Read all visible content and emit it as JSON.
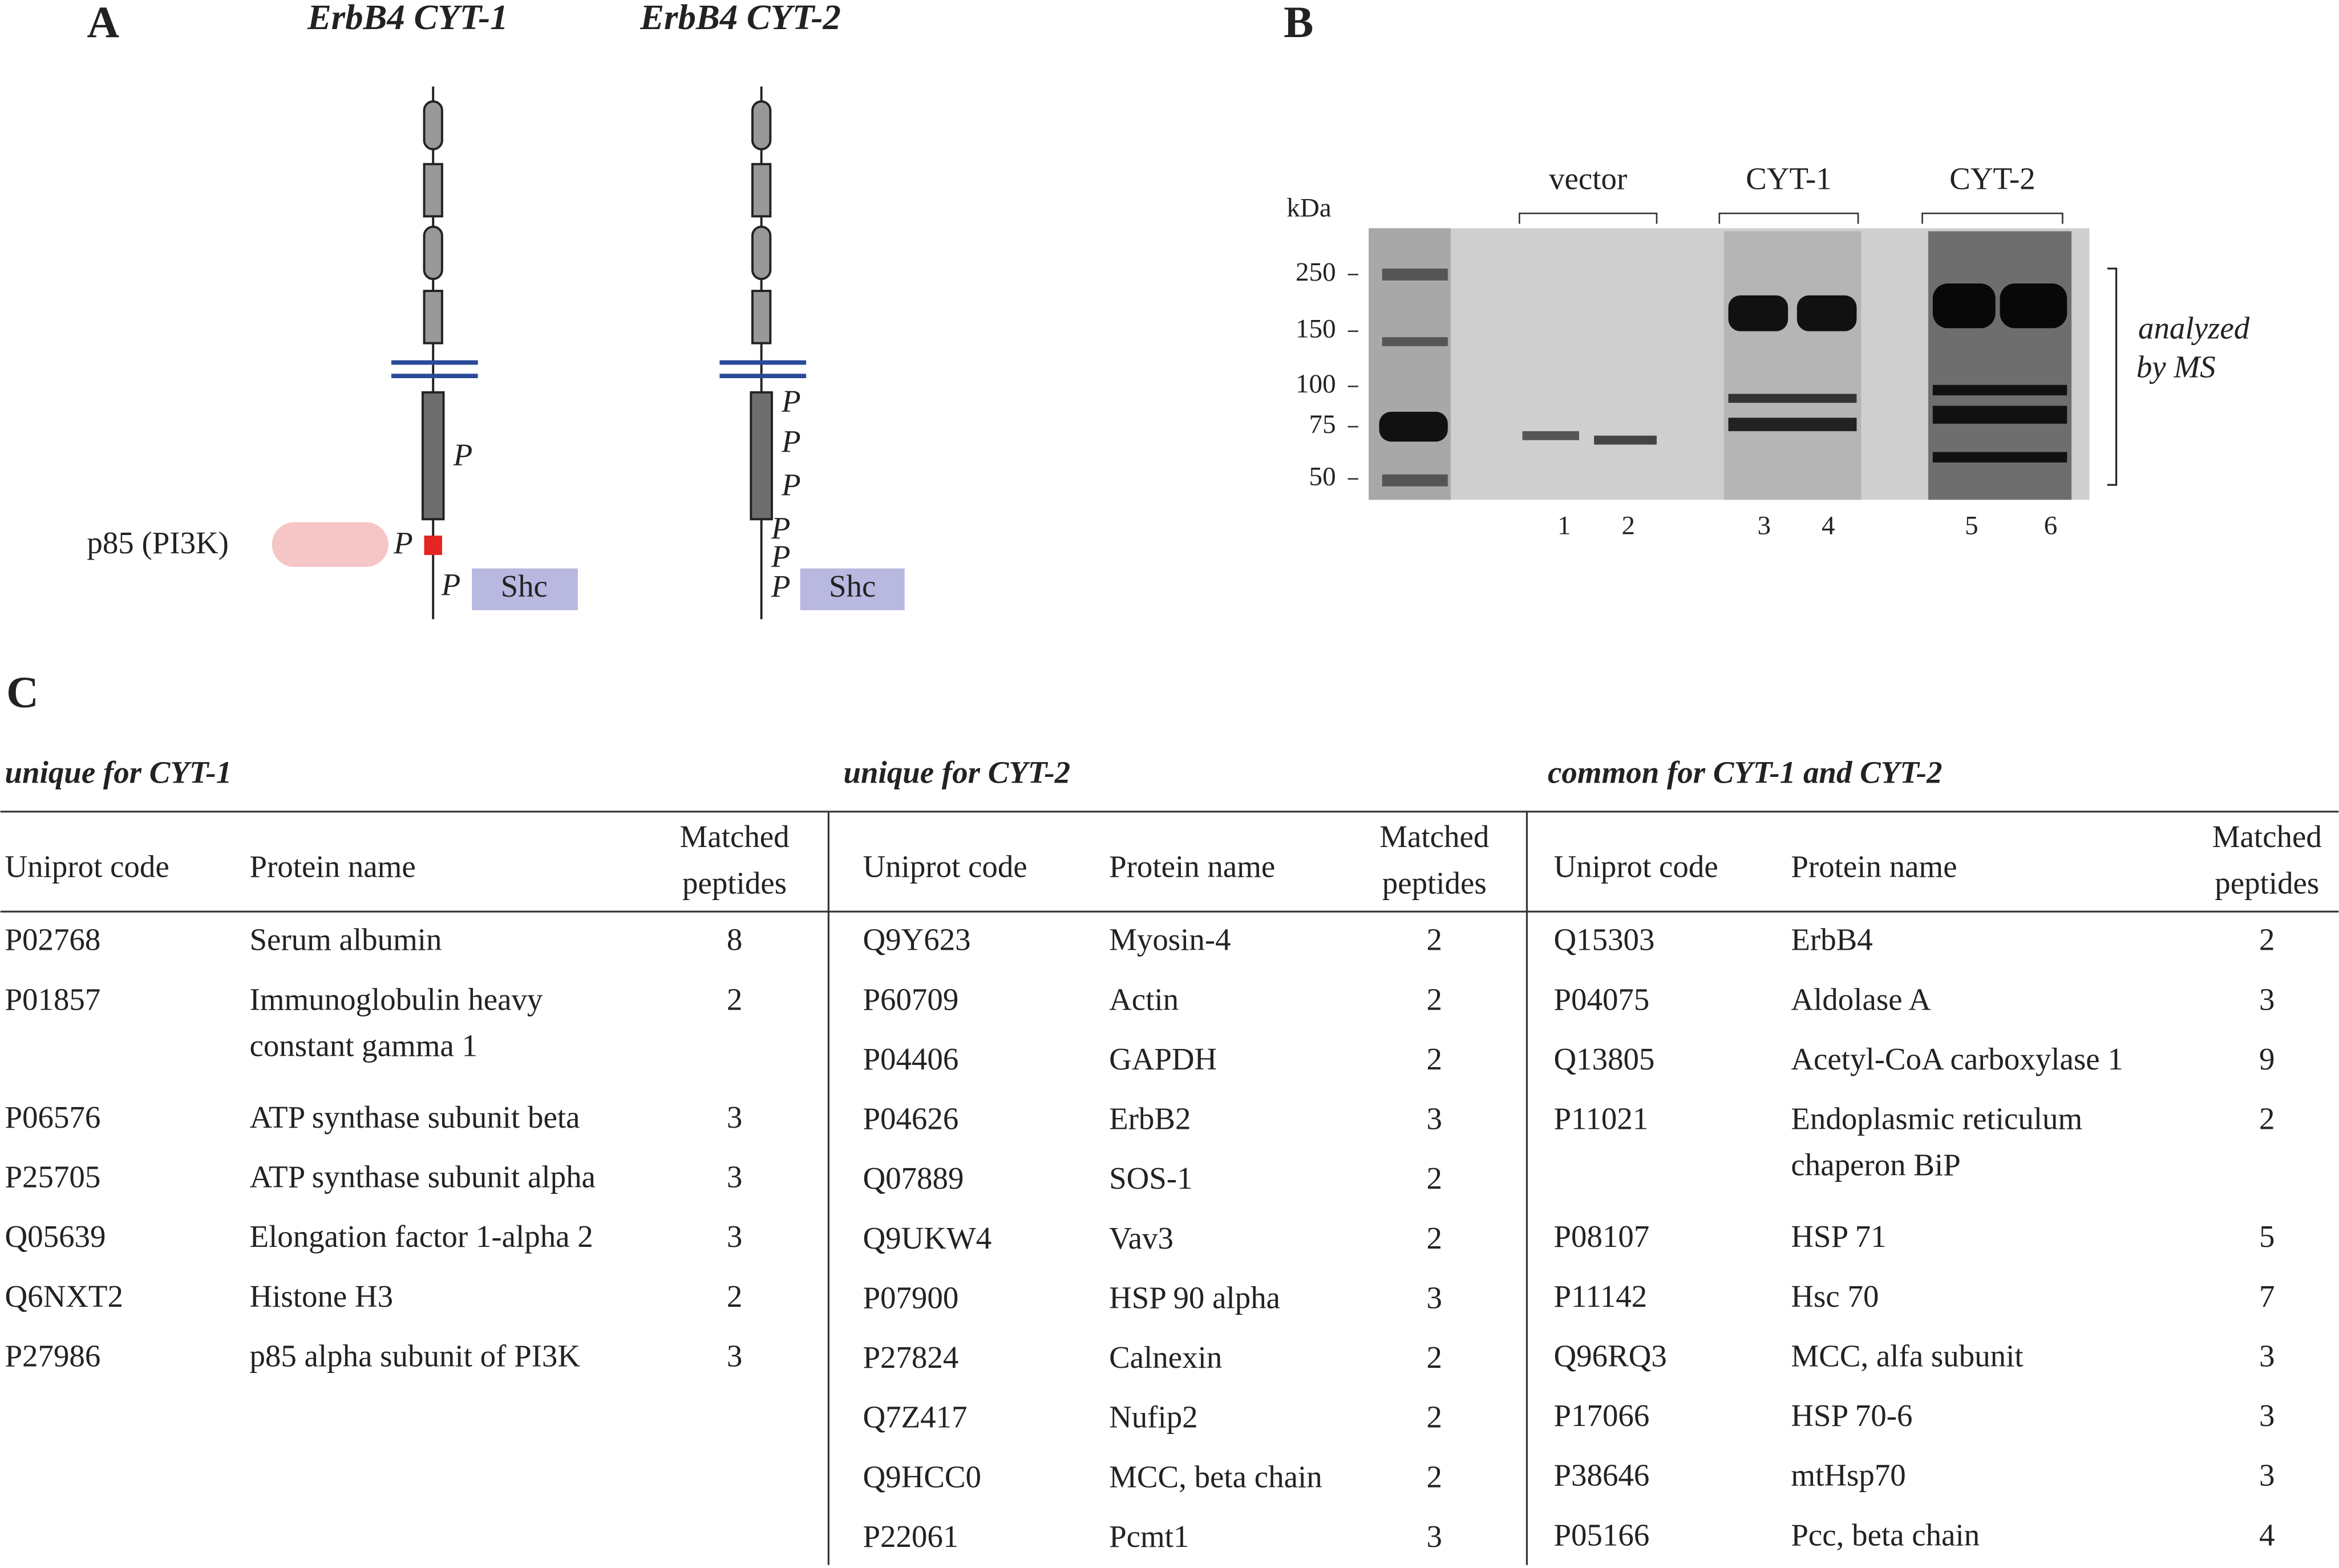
{
  "panels": {
    "a": "A",
    "b": "B",
    "c": "C"
  },
  "diagram": {
    "titles": [
      "ErbB4 CYT-1",
      "ErbB4 CYT-2"
    ],
    "p85": "p85 (PI3K)",
    "shc": "Shc",
    "p": "P"
  },
  "gel": {
    "kda": "kDa",
    "markers": [
      250,
      150,
      100,
      75,
      50
    ],
    "groups": [
      "vector",
      "CYT-1",
      "CYT-2"
    ],
    "lanes": [
      1,
      2,
      3,
      4,
      5,
      6
    ],
    "note": [
      "analyzed",
      "by MS"
    ]
  },
  "tables": [
    {
      "heading": "unique for CYT-1",
      "columns": [
        "Uniprot code",
        "Protein name",
        [
          "Matched",
          "peptides"
        ]
      ],
      "rows": [
        [
          "P02768",
          "Serum albumin",
          8
        ],
        [
          "P01857",
          [
            "Immunoglobulin heavy",
            "constant gamma 1"
          ],
          2
        ],
        [
          "P06576",
          "ATP synthase subunit beta",
          3
        ],
        [
          "P25705",
          "ATP synthase subunit alpha",
          3
        ],
        [
          "Q05639",
          "Elongation factor 1-alpha 2",
          3
        ],
        [
          "Q6NXT2",
          "Histone H3",
          2
        ],
        [
          "P27986",
          "p85 alpha subunit of PI3K",
          3
        ]
      ]
    },
    {
      "heading": "unique for CYT-2",
      "columns": [
        "Uniprot code",
        "Protein name",
        [
          "Matched",
          "peptides"
        ]
      ],
      "rows": [
        [
          "Q9Y623",
          "Myosin-4",
          2
        ],
        [
          "P60709",
          "Actin",
          2
        ],
        [
          "P04406",
          "GAPDH",
          2
        ],
        [
          "P04626",
          "ErbB2",
          3
        ],
        [
          "Q07889",
          "SOS-1",
          2
        ],
        [
          "Q9UKW4",
          "Vav3",
          2
        ],
        [
          "P07900",
          "HSP 90 alpha",
          3
        ],
        [
          "P27824",
          "Calnexin",
          2
        ],
        [
          "Q7Z417",
          "Nufip2",
          2
        ],
        [
          "Q9HCC0",
          "MCC, beta chain",
          2
        ],
        [
          "P22061",
          "Pcmt1",
          3
        ]
      ]
    },
    {
      "heading": "common for CYT-1 and CYT-2",
      "columns": [
        "Uniprot code",
        "Protein name",
        [
          "Matched",
          "peptides"
        ]
      ],
      "rows": [
        [
          "Q15303",
          "ErbB4",
          2
        ],
        [
          "P04075",
          "Aldolase A",
          3
        ],
        [
          "Q13805",
          "Acetyl-CoA carboxylase 1",
          9
        ],
        [
          "P11021",
          [
            "Endoplasmic reticulum",
            "chaperon BiP"
          ],
          2
        ],
        [
          "P08107",
          "HSP 71",
          5
        ],
        [
          "P11142",
          "Hsc 70",
          7
        ],
        [
          "Q96RQ3",
          "MCC, alfa subunit",
          3
        ],
        [
          "P17066",
          "HSP 70-6",
          3
        ],
        [
          "P38646",
          "mtHsp70",
          3
        ],
        [
          "P05166",
          "Pcc, beta chain",
          4
        ]
      ]
    }
  ]
}
